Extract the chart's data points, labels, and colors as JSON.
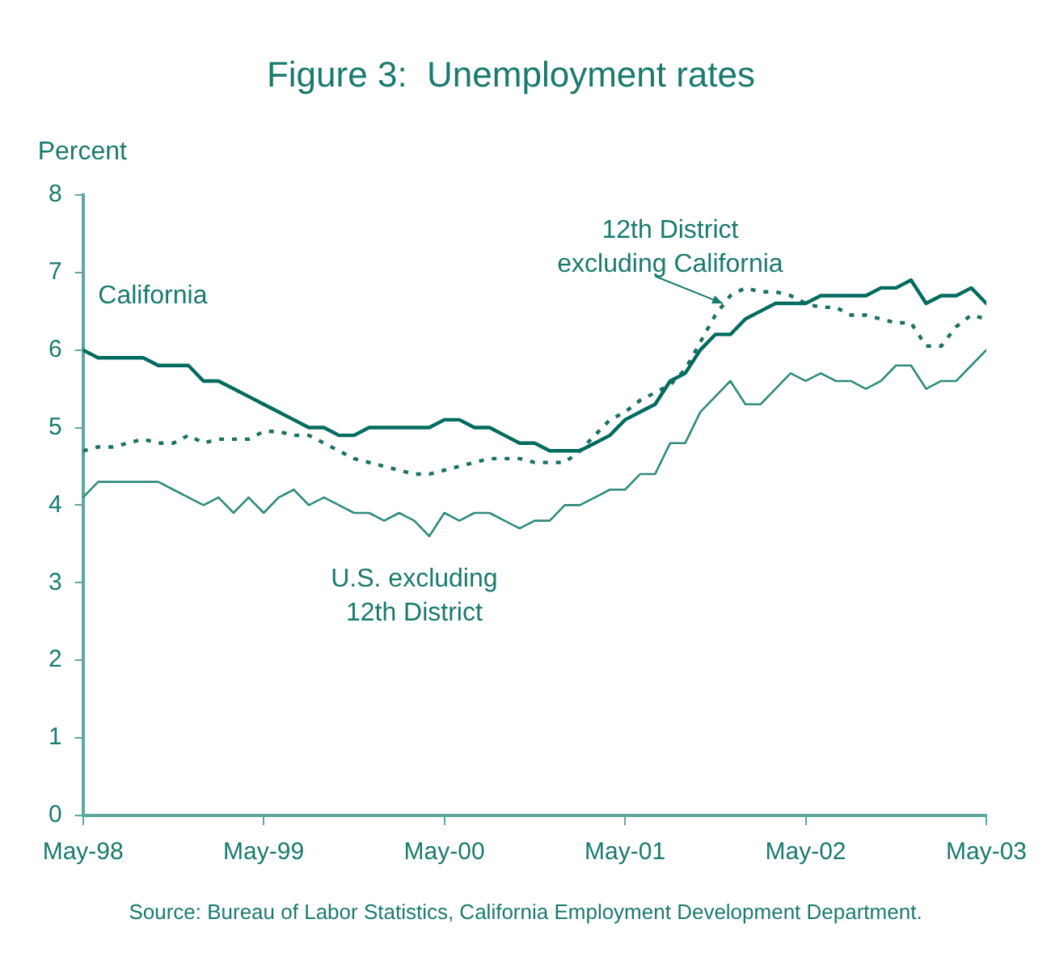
{
  "chart_data": {
    "type": "line",
    "title": "Figure 3:  Unemployment rates",
    "ylabel": "Percent",
    "x": [
      "1998-05",
      "1998-06",
      "1998-07",
      "1998-08",
      "1998-09",
      "1998-10",
      "1998-11",
      "1998-12",
      "1999-01",
      "1999-02",
      "1999-03",
      "1999-04",
      "1999-05",
      "1999-06",
      "1999-07",
      "1999-08",
      "1999-09",
      "1999-10",
      "1999-11",
      "1999-12",
      "2000-01",
      "2000-02",
      "2000-03",
      "2000-04",
      "2000-05",
      "2000-06",
      "2000-07",
      "2000-08",
      "2000-09",
      "2000-10",
      "2000-11",
      "2000-12",
      "2001-01",
      "2001-02",
      "2001-03",
      "2001-04",
      "2001-05",
      "2001-06",
      "2001-07",
      "2001-08",
      "2001-09",
      "2001-10",
      "2001-11",
      "2001-12",
      "2002-01",
      "2002-02",
      "2002-03",
      "2002-04",
      "2002-05",
      "2002-06",
      "2002-07",
      "2002-08",
      "2002-09",
      "2002-10",
      "2002-11",
      "2002-12",
      "2003-01",
      "2003-02",
      "2003-03",
      "2003-04",
      "2003-05"
    ],
    "series": [
      {
        "name": "California",
        "color": "#006b5e",
        "line_style": "solid",
        "values": [
          6.0,
          5.9,
          5.9,
          5.9,
          5.9,
          5.8,
          5.8,
          5.8,
          5.6,
          5.6,
          5.5,
          5.4,
          5.3,
          5.2,
          5.1,
          5.0,
          5.0,
          4.9,
          4.9,
          5.0,
          5.0,
          5.0,
          5.0,
          5.0,
          5.1,
          5.1,
          5.0,
          5.0,
          4.9,
          4.8,
          4.8,
          4.7,
          4.7,
          4.7,
          4.8,
          4.9,
          5.1,
          5.2,
          5.3,
          5.6,
          5.7,
          6.0,
          6.2,
          6.2,
          6.4,
          6.5,
          6.6,
          6.6,
          6.6,
          6.7,
          6.7,
          6.7,
          6.7,
          6.8,
          6.8,
          6.9,
          6.6,
          6.7,
          6.7,
          6.8,
          6.6
        ]
      },
      {
        "name": "12th District excluding California",
        "color": "#1a7065",
        "line_style": "dotted",
        "values": [
          4.7,
          4.75,
          4.75,
          4.8,
          4.85,
          4.8,
          4.8,
          4.9,
          4.8,
          4.85,
          4.85,
          4.85,
          4.95,
          4.95,
          4.9,
          4.9,
          4.8,
          4.7,
          4.6,
          4.55,
          4.5,
          4.45,
          4.4,
          4.4,
          4.45,
          4.5,
          4.55,
          4.6,
          4.6,
          4.6,
          4.55,
          4.55,
          4.55,
          4.7,
          4.9,
          5.1,
          5.2,
          5.35,
          5.45,
          5.55,
          5.75,
          6.1,
          6.45,
          6.7,
          6.8,
          6.75,
          6.75,
          6.7,
          6.6,
          6.55,
          6.55,
          6.45,
          6.45,
          6.4,
          6.35,
          6.35,
          6.05,
          6.05,
          6.3,
          6.45,
          6.4
        ]
      },
      {
        "name": "U.S. excluding 12th District",
        "color": "#2e8b7e",
        "line_style": "solid",
        "values": [
          4.1,
          4.3,
          4.3,
          4.3,
          4.3,
          4.3,
          4.2,
          4.1,
          4.0,
          4.1,
          3.9,
          4.1,
          3.9,
          4.1,
          4.2,
          4.0,
          4.1,
          4.0,
          3.9,
          3.9,
          3.8,
          3.9,
          3.8,
          3.6,
          3.9,
          3.8,
          3.9,
          3.9,
          3.8,
          3.7,
          3.8,
          3.8,
          4.0,
          4.0,
          4.1,
          4.2,
          4.2,
          4.4,
          4.4,
          4.8,
          4.8,
          5.2,
          5.4,
          5.6,
          5.3,
          5.3,
          5.5,
          5.7,
          5.6,
          5.7,
          5.6,
          5.6,
          5.5,
          5.6,
          5.8,
          5.8,
          5.5,
          5.6,
          5.6,
          5.8,
          6.0
        ]
      }
    ],
    "xlim": [
      "1998-05",
      "2003-05"
    ],
    "xticks": [
      {
        "value": "1998-05",
        "label": "May-98"
      },
      {
        "value": "1999-05",
        "label": "May-99"
      },
      {
        "value": "2000-05",
        "label": "May-00"
      },
      {
        "value": "2001-05",
        "label": "May-01"
      },
      {
        "value": "2002-05",
        "label": "May-02"
      },
      {
        "value": "2003-05",
        "label": "May-03"
      }
    ],
    "ylim": [
      0,
      8
    ],
    "yticks": [
      0,
      1,
      2,
      3,
      4,
      5,
      6,
      7,
      8
    ],
    "grid": false,
    "legend": false,
    "marker": "none",
    "annotations": [
      "Source: Bureau of Labor Statistics, California Employment Development Department."
    ]
  }
}
